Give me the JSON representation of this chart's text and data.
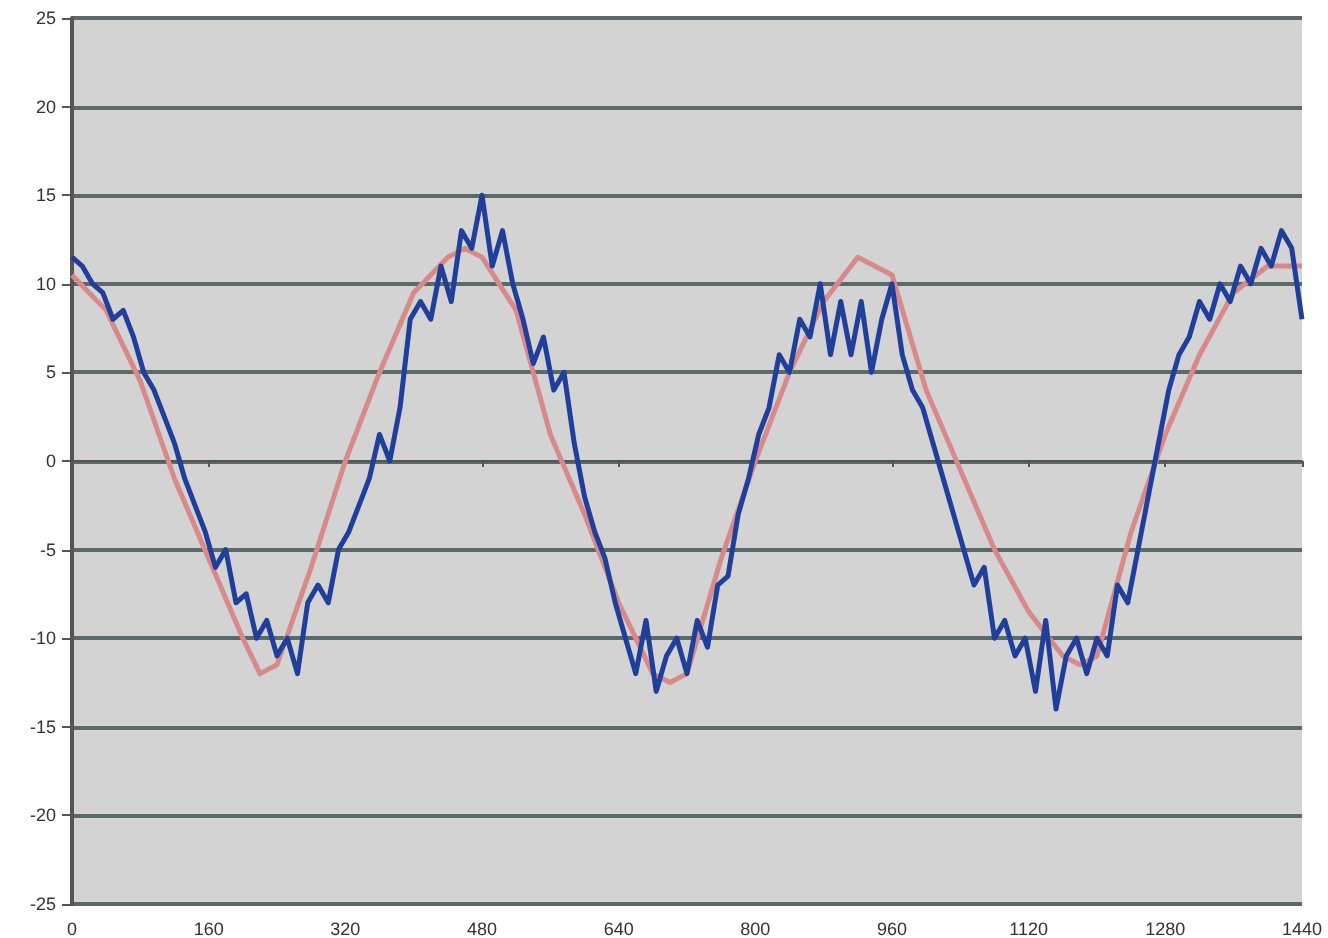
{
  "chart_data": {
    "type": "line",
    "marker": "none",
    "grid": "y",
    "xlim": [
      0,
      1440
    ],
    "xticks": [
      0,
      160,
      320,
      480,
      640,
      800,
      960,
      1120,
      1280,
      1440
    ],
    "ylim": [
      -25,
      25
    ],
    "yticks": [
      -25,
      -20,
      -15,
      -10,
      -5,
      0,
      5,
      10,
      15,
      20,
      25
    ],
    "series": [
      {
        "color": "#d88a8a",
        "x": [
          0,
          40,
          80,
          120,
          160,
          200,
          220,
          240,
          280,
          320,
          360,
          400,
          440,
          460,
          480,
          520,
          560,
          600,
          640,
          680,
          700,
          720,
          760,
          800,
          840,
          880,
          920,
          960,
          1000,
          1040,
          1080,
          1120,
          1160,
          1180,
          1200,
          1240,
          1280,
          1320,
          1360,
          1400,
          1440
        ],
        "values": [
          10.5,
          8.5,
          4.5,
          -1,
          -5.5,
          -10,
          -12,
          -11.5,
          -6,
          0,
          5,
          9.5,
          11.5,
          12,
          11.5,
          8.5,
          1.5,
          -3,
          -8,
          -12,
          -12.5,
          -12,
          -5.5,
          0,
          5,
          9,
          11.5,
          10.5,
          4,
          -0.5,
          -5,
          -8.5,
          -11,
          -11.5,
          -11,
          -4,
          1.5,
          6,
          9.5,
          11,
          11
        ]
      },
      {
        "color": "#1f3f9a",
        "x": [
          0,
          12,
          24,
          36,
          48,
          60,
          72,
          84,
          96,
          108,
          120,
          132,
          144,
          156,
          168,
          180,
          192,
          204,
          216,
          228,
          240,
          252,
          264,
          276,
          288,
          300,
          312,
          324,
          336,
          348,
          360,
          372,
          384,
          396,
          408,
          420,
          432,
          444,
          456,
          468,
          480,
          492,
          504,
          516,
          528,
          540,
          552,
          564,
          576,
          588,
          600,
          612,
          624,
          636,
          648,
          660,
          672,
          684,
          696,
          708,
          720,
          732,
          744,
          756,
          768,
          780,
          792,
          804,
          816,
          828,
          840,
          852,
          864,
          876,
          888,
          900,
          912,
          924,
          936,
          948,
          960,
          972,
          984,
          996,
          1008,
          1020,
          1032,
          1044,
          1056,
          1068,
          1080,
          1092,
          1104,
          1116,
          1128,
          1140,
          1152,
          1164,
          1176,
          1188,
          1200,
          1212,
          1224,
          1236,
          1248,
          1260,
          1272,
          1284,
          1296,
          1308,
          1320,
          1332,
          1344,
          1356,
          1368,
          1380,
          1392,
          1404,
          1416,
          1428,
          1440
        ],
        "values": [
          11.5,
          11,
          10,
          9.5,
          8,
          8.5,
          7,
          5,
          4,
          2.5,
          1,
          -1,
          -2.5,
          -4,
          -6,
          -5,
          -8,
          -7.5,
          -10,
          -9,
          -11,
          -10,
          -12,
          -8,
          -7,
          -8,
          -5,
          -4,
          -2.5,
          -1,
          1.5,
          0,
          3,
          8,
          9,
          8,
          11,
          9,
          13,
          12,
          15,
          11,
          13,
          10,
          8,
          5.5,
          7,
          4,
          5,
          1,
          -2,
          -4,
          -5.5,
          -8,
          -10,
          -12,
          -9,
          -13,
          -11,
          -10,
          -12,
          -9,
          -10.5,
          -7,
          -6.5,
          -3,
          -1,
          1.5,
          3,
          6,
          5,
          8,
          7,
          10,
          6,
          9,
          6,
          9,
          5,
          8,
          10,
          6,
          4,
          3,
          1,
          -1,
          -3,
          -5,
          -7,
          -6,
          -10,
          -9,
          -11,
          -10,
          -13,
          -9,
          -14,
          -11,
          -10,
          -12,
          -10,
          -11,
          -7,
          -8,
          -5,
          -2,
          1,
          4,
          6,
          7,
          9,
          8,
          10,
          9,
          11,
          10,
          12,
          11,
          13,
          12,
          8
        ]
      }
    ]
  }
}
